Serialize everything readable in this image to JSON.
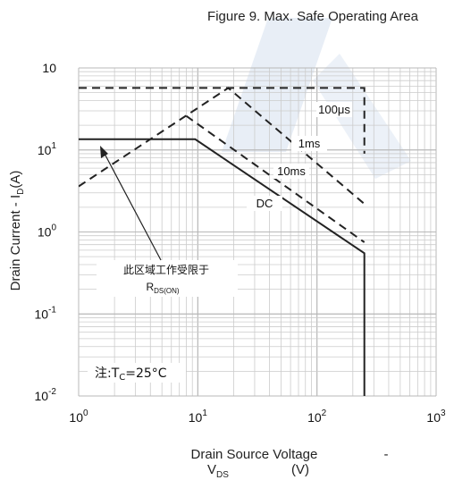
{
  "chart_data": {
    "type": "line",
    "title": "Figure 9. Max. Safe Operating Area",
    "xlabel": {
      "text": "Drain Source Voltage",
      "sep": " - ",
      "var": "V",
      "sub": "DS",
      "unit": "(V)"
    },
    "ylabel": {
      "text": "Drain Current",
      "sep": " - ",
      "var": "I",
      "sub": "D",
      "unit": "(A)"
    },
    "xscale": "log",
    "yscale": "log",
    "xlim": [
      1,
      1000
    ],
    "ylim": [
      0.01,
      100
    ],
    "grid": true,
    "x_ticks": [
      {
        "base": "10",
        "exp": "0"
      },
      {
        "base": "10",
        "exp": "1"
      },
      {
        "base": "10",
        "exp": "2"
      },
      {
        "base": "10",
        "exp": "3"
      }
    ],
    "y_ticks": [
      {
        "base": "10",
        "exp": "-2"
      },
      {
        "base": "10",
        "exp": "-1"
      },
      {
        "base": "10",
        "exp": "0"
      },
      {
        "base": "10",
        "exp": "1"
      },
      {
        "base": "10",
        "exp": ""
      }
    ],
    "series": [
      {
        "name": "100μs",
        "style": "dashed",
        "x": [
          1,
          250,
          250
        ],
        "y": [
          57,
          57,
          9
        ]
      },
      {
        "name": "1ms",
        "style": "dashed",
        "x": [
          1,
          18,
          250
        ],
        "y": [
          3.6,
          57,
          2.2
        ]
      },
      {
        "name": "10ms",
        "style": "dashed",
        "x": [
          8,
          250
        ],
        "y": [
          26,
          0.75
        ]
      },
      {
        "name": "DC",
        "style": "solid",
        "x": [
          1,
          9.5,
          250,
          250
        ],
        "y": [
          13.5,
          13.5,
          0.55,
          0.01
        ]
      }
    ],
    "annotations": {
      "limit_line1": "此区域工作受限于",
      "limit_r": "R",
      "limit_sub": "DS(ON)",
      "note_prefix": "注:T",
      "note_sub": "C",
      "note_value": "=25°C"
    },
    "colors": {
      "line": "#222222",
      "grid": "#cccccc",
      "watermark": "#dbe4f1"
    }
  }
}
